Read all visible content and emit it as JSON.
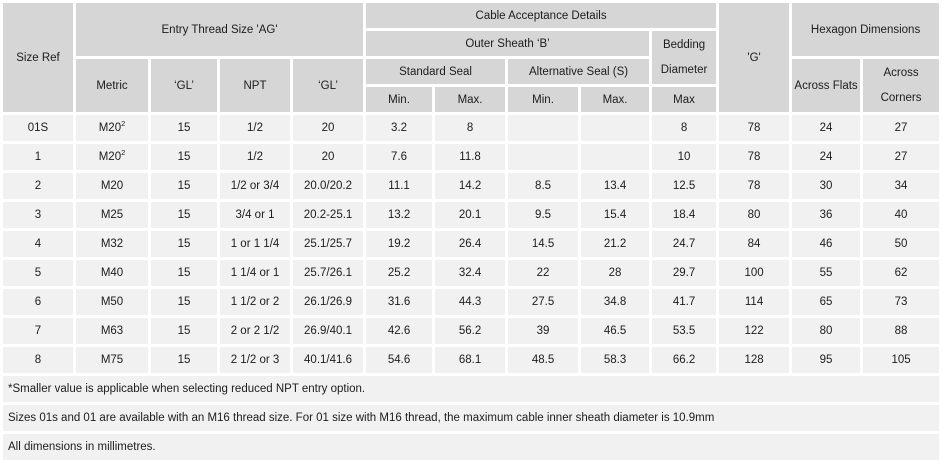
{
  "colors": {
    "header_bg": "#d6d6d6",
    "row_bg": "#f1f1f1",
    "grid_gap": "#ffffff",
    "text": "#1c1c1c"
  },
  "table": {
    "header": {
      "size_ref": "Size Ref",
      "entry_thread": "Entry Thread Size 'AG'",
      "cable_acceptance": "Cable Acceptance Details",
      "outer_sheath": "Outer Sheath ‘B’",
      "bedding_diameter": "Bedding Diameter",
      "standard_seal": "Standard Seal",
      "alternative_seal": "Alternative Seal (S)",
      "g": "'G'",
      "hexagon": "Hexagon Dimensions",
      "metric": "Metric",
      "gl_metric": "‘GL’",
      "npt": "NPT",
      "gl_npt": "‘GL’",
      "std_min": "Min.",
      "std_max": "Max.",
      "alt_min": "Min.",
      "alt_max": "Max.",
      "bedding_max": "Max",
      "across_flats": "Across Flats",
      "across_corners": "Across Corners"
    },
    "rows": [
      {
        "size_ref": "01S",
        "metric": "M20",
        "metric_sup": "2",
        "gl": "15",
        "npt": "1/2",
        "npt_gl": "20",
        "std_min": "3.2",
        "std_max": "8",
        "alt_min": "",
        "alt_max": "",
        "bedding_max": "8",
        "g": "78",
        "across_flats": "24",
        "across_corners": "27"
      },
      {
        "size_ref": "1",
        "metric": "M20",
        "metric_sup": "2",
        "gl": "15",
        "npt": "1/2",
        "npt_gl": "20",
        "std_min": "7.6",
        "std_max": "11.8",
        "alt_min": "",
        "alt_max": "",
        "bedding_max": "10",
        "g": "78",
        "across_flats": "24",
        "across_corners": "27"
      },
      {
        "size_ref": "2",
        "metric": "M20",
        "metric_sup": "",
        "gl": "15",
        "npt": "1/2 or 3/4",
        "npt_gl": "20.0/20.2",
        "std_min": "11.1",
        "std_max": "14.2",
        "alt_min": "8.5",
        "alt_max": "13.4",
        "bedding_max": "12.5",
        "g": "78",
        "across_flats": "30",
        "across_corners": "34"
      },
      {
        "size_ref": "3",
        "metric": "M25",
        "metric_sup": "",
        "gl": "15",
        "npt": "3/4 or 1",
        "npt_gl": "20.2-25.1",
        "std_min": "13.2",
        "std_max": "20.1",
        "alt_min": "9.5",
        "alt_max": "15.4",
        "bedding_max": "18.4",
        "g": "80",
        "across_flats": "36",
        "across_corners": "40"
      },
      {
        "size_ref": "4",
        "metric": "M32",
        "metric_sup": "",
        "gl": "15",
        "npt": "1 or 1 1/4",
        "npt_gl": "25.1/25.7",
        "std_min": "19.2",
        "std_max": "26.4",
        "alt_min": "14.5",
        "alt_max": "21.2",
        "bedding_max": "24.7",
        "g": "84",
        "across_flats": "46",
        "across_corners": "50"
      },
      {
        "size_ref": "5",
        "metric": "M40",
        "metric_sup": "",
        "gl": "15",
        "npt": "1 1/4 or 1",
        "npt_gl": "25.7/26.1",
        "std_min": "25.2",
        "std_max": "32.4",
        "alt_min": "22",
        "alt_max": "28",
        "bedding_max": "29.7",
        "g": "100",
        "across_flats": "55",
        "across_corners": "62"
      },
      {
        "size_ref": "6",
        "metric": "M50",
        "metric_sup": "",
        "gl": "15",
        "npt": "1 1/2 or 2",
        "npt_gl": "26.1/26.9",
        "std_min": "31.6",
        "std_max": "44.3",
        "alt_min": "27.5",
        "alt_max": "34.8",
        "bedding_max": "41.7",
        "g": "114",
        "across_flats": "65",
        "across_corners": "73"
      },
      {
        "size_ref": "7",
        "metric": "M63",
        "metric_sup": "",
        "gl": "15",
        "npt": "2 or 2 1/2",
        "npt_gl": "26.9/40.1",
        "std_min": "42.6",
        "std_max": "56.2",
        "alt_min": "39",
        "alt_max": "46.5",
        "bedding_max": "53.5",
        "g": "122",
        "across_flats": "80",
        "across_corners": "88"
      },
      {
        "size_ref": "8",
        "metric": "M75",
        "metric_sup": "",
        "gl": "15",
        "npt": "2 1/2 or 3",
        "npt_gl": "40.1/41.6",
        "std_min": "54.6",
        "std_max": "68.1",
        "alt_min": "48.5",
        "alt_max": "58.3",
        "bedding_max": "66.2",
        "g": "128",
        "across_flats": "95",
        "across_corners": "105"
      }
    ],
    "footnotes": [
      "*Smaller value is applicable when selecting reduced NPT entry option.",
      "Sizes 01s and 01 are available with an M16 thread size. For 01 size with M16 thread, the maximum cable inner sheath diameter is 10.9mm",
      "All dimensions in millimetres."
    ]
  }
}
